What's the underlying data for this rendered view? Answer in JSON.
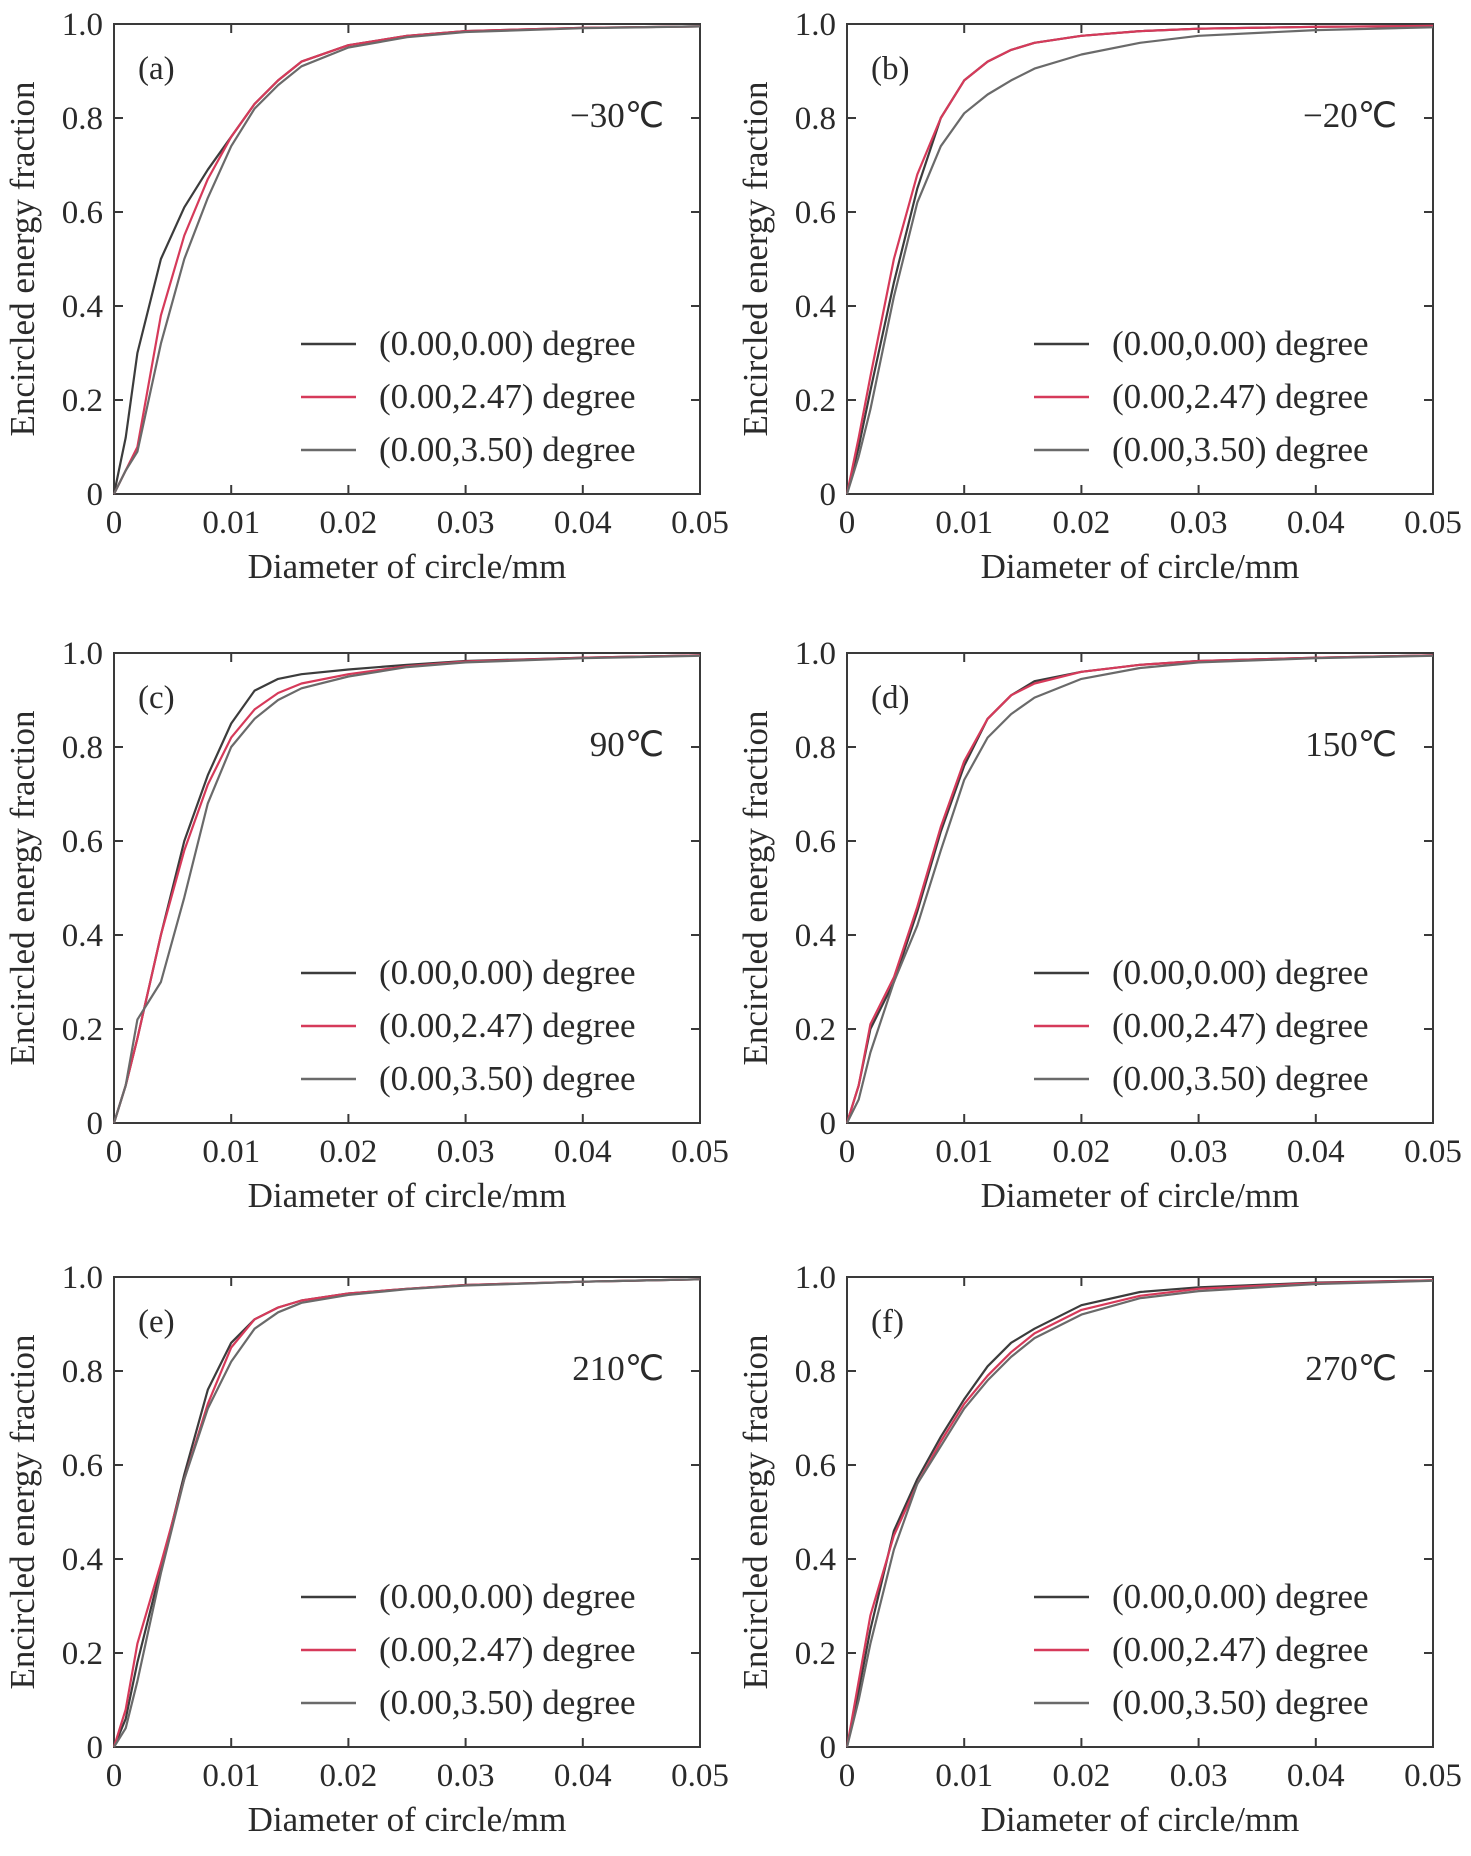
{
  "colors": {
    "axis": "#3a3a3a",
    "series_0": "#3c3c3c",
    "series_1": "#d63a5a",
    "series_2": "#6a6a6a"
  },
  "chart_data": [
    {
      "type": "line",
      "panel_label": "(a)",
      "annotation": "−30℃",
      "xlabel": "Diameter of circle/mm",
      "ylabel": "Encircled energy fraction",
      "xlim": [
        0,
        0.05
      ],
      "ylim": [
        0,
        1.0
      ],
      "x_ticks": [
        "0",
        "0.01",
        "0.02",
        "0.03",
        "0.04",
        "0.05"
      ],
      "y_ticks": [
        "0",
        "0.2",
        "0.4",
        "0.6",
        "0.8",
        "1.0"
      ],
      "legend_position": "bottom-right",
      "series": [
        {
          "name": "(0.00,0.00) degree",
          "x": [
            0,
            0.001,
            0.002,
            0.004,
            0.006,
            0.008,
            0.01,
            0.012,
            0.014,
            0.016,
            0.02,
            0.025,
            0.03,
            0.04,
            0.05
          ],
          "y": [
            0,
            0.12,
            0.3,
            0.5,
            0.61,
            0.69,
            0.76,
            0.83,
            0.88,
            0.92,
            0.955,
            0.975,
            0.985,
            0.992,
            0.995
          ]
        },
        {
          "name": "(0.00,2.47) degree",
          "x": [
            0,
            0.001,
            0.002,
            0.004,
            0.006,
            0.008,
            0.01,
            0.012,
            0.014,
            0.016,
            0.02,
            0.025,
            0.03,
            0.04,
            0.05
          ],
          "y": [
            0,
            0.05,
            0.1,
            0.38,
            0.55,
            0.67,
            0.76,
            0.83,
            0.88,
            0.92,
            0.955,
            0.975,
            0.985,
            0.992,
            0.995
          ]
        },
        {
          "name": "(0.00,3.50) degree",
          "x": [
            0,
            0.001,
            0.002,
            0.004,
            0.006,
            0.008,
            0.01,
            0.012,
            0.014,
            0.016,
            0.02,
            0.025,
            0.03,
            0.04,
            0.05
          ],
          "y": [
            0,
            0.05,
            0.09,
            0.32,
            0.5,
            0.63,
            0.74,
            0.82,
            0.87,
            0.91,
            0.95,
            0.972,
            0.983,
            0.991,
            0.995
          ]
        }
      ]
    },
    {
      "type": "line",
      "panel_label": "(b)",
      "annotation": "−20℃",
      "xlabel": "Diameter of circle/mm",
      "ylabel": "Encircled energy fraction",
      "xlim": [
        0,
        0.05
      ],
      "ylim": [
        0,
        1.0
      ],
      "x_ticks": [
        "0",
        "0.01",
        "0.02",
        "0.03",
        "0.04",
        "0.05"
      ],
      "y_ticks": [
        "0",
        "0.2",
        "0.4",
        "0.6",
        "0.8",
        "1.0"
      ],
      "legend_position": "bottom-right",
      "series": [
        {
          "name": "(0.00,0.00) degree",
          "x": [
            0,
            0.001,
            0.002,
            0.004,
            0.006,
            0.008,
            0.01,
            0.012,
            0.014,
            0.016,
            0.02,
            0.025,
            0.03,
            0.04,
            0.05
          ],
          "y": [
            0,
            0.1,
            0.22,
            0.45,
            0.65,
            0.8,
            0.88,
            0.92,
            0.945,
            0.96,
            0.975,
            0.985,
            0.99,
            0.994,
            0.996
          ]
        },
        {
          "name": "(0.00,2.47) degree",
          "x": [
            0,
            0.001,
            0.002,
            0.004,
            0.006,
            0.008,
            0.01,
            0.012,
            0.014,
            0.016,
            0.02,
            0.025,
            0.03,
            0.04,
            0.05
          ],
          "y": [
            0,
            0.12,
            0.25,
            0.5,
            0.68,
            0.8,
            0.88,
            0.92,
            0.945,
            0.96,
            0.975,
            0.985,
            0.99,
            0.994,
            0.996
          ]
        },
        {
          "name": "(0.00,3.50) degree",
          "x": [
            0,
            0.001,
            0.002,
            0.004,
            0.006,
            0.008,
            0.01,
            0.012,
            0.014,
            0.016,
            0.02,
            0.025,
            0.03,
            0.04,
            0.05
          ],
          "y": [
            0,
            0.08,
            0.18,
            0.42,
            0.62,
            0.74,
            0.81,
            0.85,
            0.88,
            0.905,
            0.935,
            0.96,
            0.975,
            0.987,
            0.993
          ]
        }
      ]
    },
    {
      "type": "line",
      "panel_label": "(c)",
      "annotation": "90℃",
      "xlabel": "Diameter of circle/mm",
      "ylabel": "Encircled energy fraction",
      "xlim": [
        0,
        0.05
      ],
      "ylim": [
        0,
        1.0
      ],
      "x_ticks": [
        "0",
        "0.01",
        "0.02",
        "0.03",
        "0.04",
        "0.05"
      ],
      "y_ticks": [
        "0",
        "0.2",
        "0.4",
        "0.6",
        "0.8",
        "1.0"
      ],
      "legend_position": "bottom-right",
      "series": [
        {
          "name": "(0.00,0.00) degree",
          "x": [
            0,
            0.001,
            0.002,
            0.004,
            0.006,
            0.008,
            0.01,
            0.012,
            0.014,
            0.016,
            0.02,
            0.025,
            0.03,
            0.04,
            0.05
          ],
          "y": [
            0,
            0.08,
            0.18,
            0.4,
            0.6,
            0.74,
            0.85,
            0.92,
            0.945,
            0.955,
            0.965,
            0.975,
            0.983,
            0.99,
            0.995
          ]
        },
        {
          "name": "(0.00,2.47) degree",
          "x": [
            0,
            0.001,
            0.002,
            0.004,
            0.006,
            0.008,
            0.01,
            0.012,
            0.014,
            0.016,
            0.02,
            0.025,
            0.03,
            0.04,
            0.05
          ],
          "y": [
            0,
            0.08,
            0.18,
            0.4,
            0.58,
            0.72,
            0.82,
            0.88,
            0.915,
            0.935,
            0.955,
            0.972,
            0.982,
            0.99,
            0.995
          ]
        },
        {
          "name": "(0.00,3.50) degree",
          "x": [
            0,
            0.001,
            0.002,
            0.004,
            0.006,
            0.008,
            0.01,
            0.012,
            0.014,
            0.016,
            0.02,
            0.025,
            0.03,
            0.04,
            0.05
          ],
          "y": [
            0,
            0.08,
            0.22,
            0.3,
            0.48,
            0.68,
            0.8,
            0.86,
            0.9,
            0.925,
            0.95,
            0.97,
            0.98,
            0.989,
            0.994
          ]
        }
      ]
    },
    {
      "type": "line",
      "panel_label": "(d)",
      "annotation": "150℃",
      "xlabel": "Diameter of circle/mm",
      "ylabel": "Encircled energy fraction",
      "xlim": [
        0,
        0.05
      ],
      "ylim": [
        0,
        1.0
      ],
      "x_ticks": [
        "0",
        "0.01",
        "0.02",
        "0.03",
        "0.04",
        "0.05"
      ],
      "y_ticks": [
        "0",
        "0.2",
        "0.4",
        "0.6",
        "0.8",
        "1.0"
      ],
      "legend_position": "bottom-right",
      "series": [
        {
          "name": "(0.00,0.00) degree",
          "x": [
            0,
            0.001,
            0.002,
            0.004,
            0.006,
            0.008,
            0.01,
            0.012,
            0.014,
            0.016,
            0.02,
            0.025,
            0.03,
            0.04,
            0.05
          ],
          "y": [
            0,
            0.08,
            0.2,
            0.3,
            0.45,
            0.62,
            0.76,
            0.86,
            0.91,
            0.94,
            0.96,
            0.975,
            0.983,
            0.99,
            0.995
          ]
        },
        {
          "name": "(0.00,2.47) degree",
          "x": [
            0,
            0.001,
            0.002,
            0.004,
            0.006,
            0.008,
            0.01,
            0.012,
            0.014,
            0.016,
            0.02,
            0.025,
            0.03,
            0.04,
            0.05
          ],
          "y": [
            0,
            0.08,
            0.21,
            0.31,
            0.46,
            0.63,
            0.77,
            0.86,
            0.91,
            0.935,
            0.96,
            0.975,
            0.983,
            0.99,
            0.995
          ]
        },
        {
          "name": "(0.00,3.50) degree",
          "x": [
            0,
            0.001,
            0.002,
            0.004,
            0.006,
            0.008,
            0.01,
            0.012,
            0.014,
            0.016,
            0.02,
            0.025,
            0.03,
            0.04,
            0.05
          ],
          "y": [
            0,
            0.05,
            0.15,
            0.3,
            0.42,
            0.58,
            0.73,
            0.82,
            0.87,
            0.905,
            0.945,
            0.968,
            0.98,
            0.989,
            0.994
          ]
        }
      ]
    },
    {
      "type": "line",
      "panel_label": "(e)",
      "annotation": "210℃",
      "xlabel": "Diameter of circle/mm",
      "ylabel": "Encircled energy fraction",
      "xlim": [
        0,
        0.05
      ],
      "ylim": [
        0,
        1.0
      ],
      "x_ticks": [
        "0",
        "0.01",
        "0.02",
        "0.03",
        "0.04",
        "0.05"
      ],
      "y_ticks": [
        "0",
        "0.2",
        "0.4",
        "0.6",
        "0.8",
        "1.0"
      ],
      "legend_position": "bottom-right",
      "series": [
        {
          "name": "(0.00,0.00) degree",
          "x": [
            0,
            0.001,
            0.002,
            0.004,
            0.006,
            0.008,
            0.01,
            0.012,
            0.014,
            0.016,
            0.02,
            0.025,
            0.03,
            0.04,
            0.05
          ],
          "y": [
            0,
            0.06,
            0.18,
            0.38,
            0.58,
            0.76,
            0.86,
            0.91,
            0.935,
            0.95,
            0.965,
            0.975,
            0.983,
            0.99,
            0.995
          ]
        },
        {
          "name": "(0.00,2.47) degree",
          "x": [
            0,
            0.001,
            0.002,
            0.004,
            0.006,
            0.008,
            0.01,
            0.012,
            0.014,
            0.016,
            0.02,
            0.025,
            0.03,
            0.04,
            0.05
          ],
          "y": [
            0,
            0.08,
            0.22,
            0.39,
            0.57,
            0.73,
            0.85,
            0.91,
            0.935,
            0.95,
            0.965,
            0.975,
            0.983,
            0.99,
            0.995
          ]
        },
        {
          "name": "(0.00,3.50) degree",
          "x": [
            0,
            0.001,
            0.002,
            0.004,
            0.006,
            0.008,
            0.01,
            0.012,
            0.014,
            0.016,
            0.02,
            0.025,
            0.03,
            0.04,
            0.05
          ],
          "y": [
            0,
            0.04,
            0.14,
            0.37,
            0.57,
            0.72,
            0.82,
            0.89,
            0.925,
            0.945,
            0.962,
            0.974,
            0.982,
            0.99,
            0.995
          ]
        }
      ]
    },
    {
      "type": "line",
      "panel_label": "(f)",
      "annotation": "270℃",
      "xlabel": "Diameter of circle/mm",
      "ylabel": "Encircled energy fraction",
      "xlim": [
        0,
        0.05
      ],
      "ylim": [
        0,
        1.0
      ],
      "x_ticks": [
        "0",
        "0.01",
        "0.02",
        "0.03",
        "0.04",
        "0.05"
      ],
      "y_ticks": [
        "0",
        "0.2",
        "0.4",
        "0.6",
        "0.8",
        "1.0"
      ],
      "legend_position": "bottom-right",
      "series": [
        {
          "name": "(0.00,0.00) degree",
          "x": [
            0,
            0.001,
            0.002,
            0.004,
            0.006,
            0.008,
            0.01,
            0.012,
            0.014,
            0.016,
            0.02,
            0.025,
            0.03,
            0.04,
            0.05
          ],
          "y": [
            0,
            0.12,
            0.25,
            0.46,
            0.57,
            0.66,
            0.74,
            0.81,
            0.86,
            0.89,
            0.94,
            0.968,
            0.978,
            0.988,
            0.993
          ]
        },
        {
          "name": "(0.00,2.47) degree",
          "x": [
            0,
            0.001,
            0.002,
            0.004,
            0.006,
            0.008,
            0.01,
            0.012,
            0.014,
            0.016,
            0.02,
            0.025,
            0.03,
            0.04,
            0.05
          ],
          "y": [
            0,
            0.14,
            0.28,
            0.45,
            0.56,
            0.65,
            0.73,
            0.79,
            0.84,
            0.88,
            0.93,
            0.96,
            0.975,
            0.987,
            0.993
          ]
        },
        {
          "name": "(0.00,3.50) degree",
          "x": [
            0,
            0.001,
            0.002,
            0.004,
            0.006,
            0.008,
            0.01,
            0.012,
            0.014,
            0.016,
            0.02,
            0.025,
            0.03,
            0.04,
            0.05
          ],
          "y": [
            0,
            0.1,
            0.22,
            0.42,
            0.56,
            0.64,
            0.72,
            0.78,
            0.83,
            0.87,
            0.92,
            0.955,
            0.97,
            0.985,
            0.992
          ]
        }
      ]
    }
  ]
}
